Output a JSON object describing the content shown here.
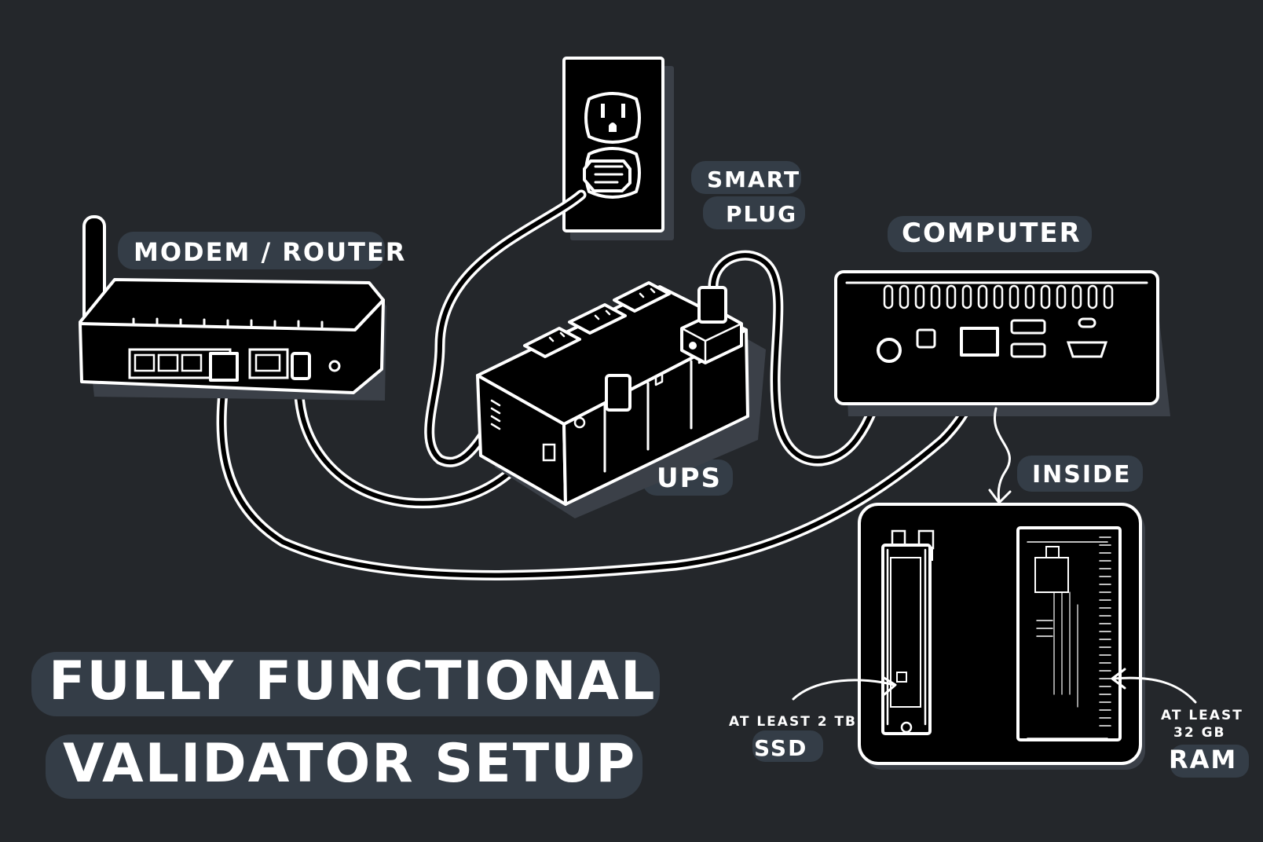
{
  "labels": {
    "modem_router": "MODEM / ROUTER",
    "smart_plug_line1": "SMART",
    "smart_plug_line2": "PLUG",
    "computer": "COMPUTER",
    "ups": "UPS",
    "inside": "INSIDE",
    "title_line1": "FULLY FUNCTIONAL",
    "title_line2": "VALIDATOR SETUP",
    "ssd_note": "AT LEAST 2 TB",
    "ssd": "SSD",
    "ram_note_line1": "AT LEAST",
    "ram_note_line2": "32 GB",
    "ram": "RAM"
  },
  "colors": {
    "background": "#24272b",
    "label_shadow": "#343d47",
    "ink": "#ffffff",
    "device_fill": "#000000"
  }
}
